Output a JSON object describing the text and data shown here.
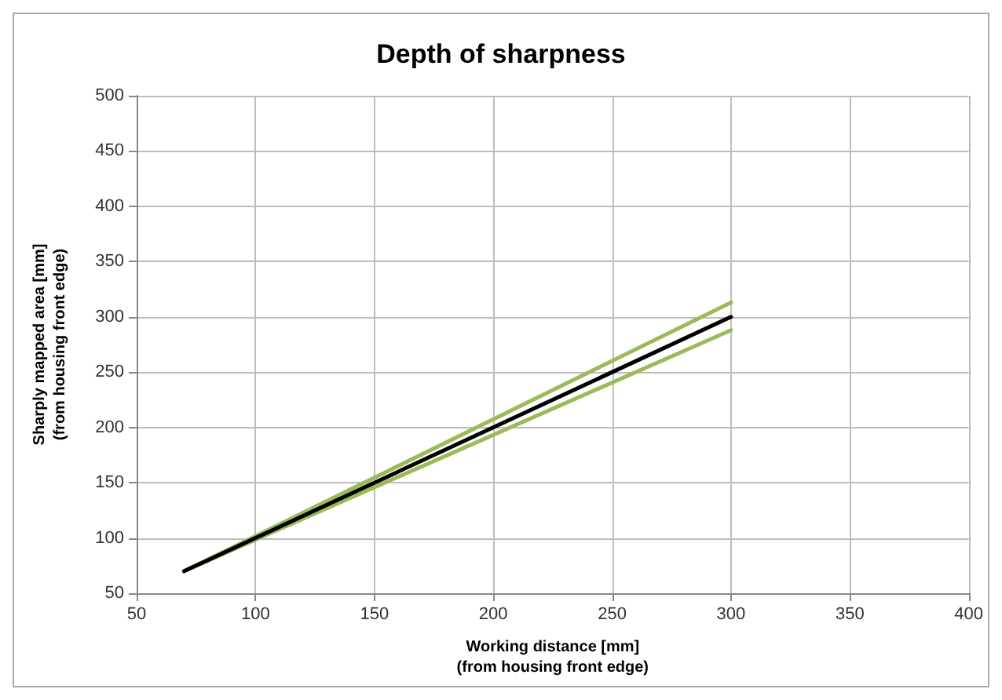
{
  "chart_data": {
    "type": "line",
    "title": "Depth of sharpness",
    "xlabel": "Working distance [mm]\n(from housing front edge)",
    "ylabel": "Sharply mapped area [mm]\n(from housing front edge)",
    "x": [
      70,
      300
    ],
    "series": [
      {
        "color": "#9bbb59",
        "values": [
          70,
          313
        ]
      },
      {
        "color": "#9bbb59",
        "values": [
          70,
          288
        ]
      },
      {
        "color": "#000000",
        "values": [
          70,
          300
        ]
      }
    ],
    "xlim": [
      50,
      400
    ],
    "xticks": [
      50,
      100,
      150,
      200,
      250,
      300,
      350,
      400
    ],
    "ylim": [
      50,
      500
    ],
    "yticks": [
      50,
      100,
      150,
      200,
      250,
      300,
      350,
      400,
      450,
      500
    ],
    "grid": true,
    "marker": "none",
    "line_style": "solid"
  }
}
